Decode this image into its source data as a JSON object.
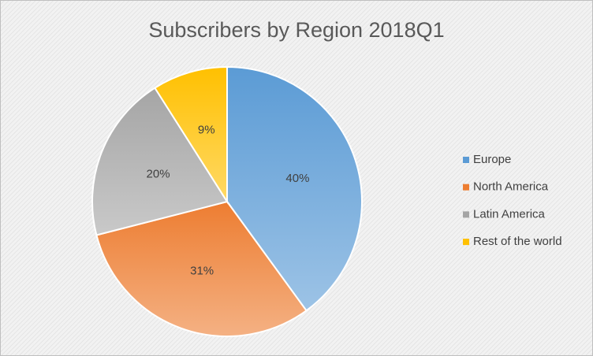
{
  "chart_data": {
    "type": "pie",
    "title": "Subscribers by Region 2018Q1",
    "categories": [
      "Europe",
      "North America",
      "Latin America",
      "Rest of the world"
    ],
    "values": [
      40,
      31,
      20,
      9
    ],
    "value_labels": [
      "40%",
      "31%",
      "20%",
      "9%"
    ],
    "colors": [
      "#5b9bd5",
      "#ed7d31",
      "#a5a5a5",
      "#ffc000"
    ],
    "legend": "right"
  }
}
